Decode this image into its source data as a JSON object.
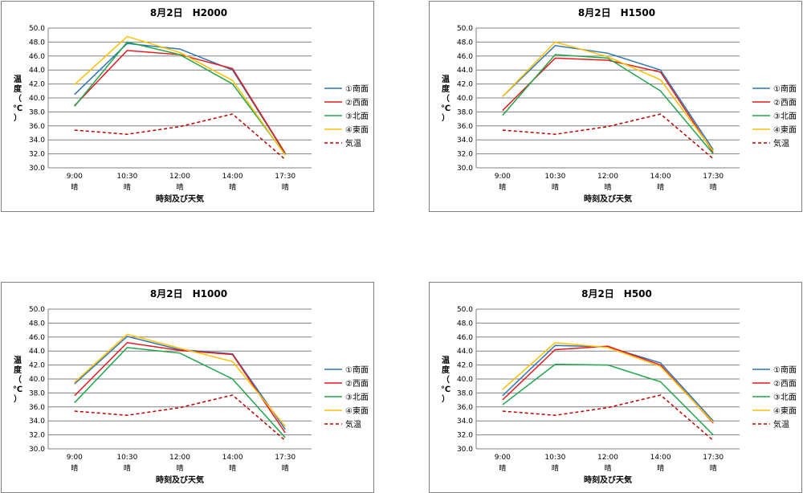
{
  "chart_data": [
    {
      "type": "line",
      "title": "8月2日　H2000",
      "xlabel": "時刻及び天気",
      "ylabel": "温度（℃）",
      "categories": [
        "9:00",
        "10:30",
        "12:00",
        "14:00",
        "17:30"
      ],
      "weather": [
        "晴",
        "晴",
        "晴",
        "晴",
        "晴"
      ],
      "ylim": [
        30.0,
        50.0
      ],
      "yticks": [
        "30.0",
        "32.0",
        "34.0",
        "36.0",
        "38.0",
        "40.0",
        "42.0",
        "44.0",
        "46.0",
        "48.0",
        "50.0"
      ],
      "grid": true,
      "legend_position": "right",
      "series": [
        {
          "name": "①南面",
          "color": "#2e75b6",
          "dash": false,
          "values": [
            40.5,
            47.8,
            47.0,
            44.0,
            32.0
          ]
        },
        {
          "name": "②西面",
          "color": "#e31a1c",
          "dash": false,
          "values": [
            38.9,
            46.8,
            46.2,
            44.2,
            32.1
          ]
        },
        {
          "name": "③北面",
          "color": "#1fa64a",
          "dash": false,
          "values": [
            38.8,
            48.0,
            46.2,
            42.0,
            31.9
          ]
        },
        {
          "name": "④東面",
          "color": "#ffc000",
          "dash": false,
          "values": [
            41.9,
            48.8,
            46.5,
            42.5,
            31.8
          ]
        },
        {
          "name": "気温",
          "color": "#c00000",
          "dash": true,
          "values": [
            35.4,
            34.8,
            35.9,
            37.7,
            31.2
          ]
        }
      ]
    },
    {
      "type": "line",
      "title": "8月2日　H1500",
      "xlabel": "時刻及び天気",
      "ylabel": "温度（℃）",
      "categories": [
        "9:00",
        "10:30",
        "12:00",
        "14:00",
        "17:30"
      ],
      "weather": [
        "晴",
        "晴",
        "晴",
        "晴",
        "晴"
      ],
      "ylim": [
        30.0,
        50.0
      ],
      "yticks": [
        "30.0",
        "32.0",
        "34.0",
        "36.0",
        "38.0",
        "40.0",
        "42.0",
        "44.0",
        "46.0",
        "48.0",
        "50.0"
      ],
      "grid": true,
      "legend_position": "right",
      "series": [
        {
          "name": "①南面",
          "color": "#2e75b6",
          "dash": false,
          "values": [
            40.2,
            47.5,
            46.4,
            44.0,
            32.6
          ]
        },
        {
          "name": "②西面",
          "color": "#e31a1c",
          "dash": false,
          "values": [
            38.2,
            45.7,
            45.4,
            43.7,
            32.2
          ]
        },
        {
          "name": "③北面",
          "color": "#1fa64a",
          "dash": false,
          "values": [
            37.5,
            46.2,
            45.7,
            41.0,
            32.0
          ]
        },
        {
          "name": "④東面",
          "color": "#ffc000",
          "dash": false,
          "values": [
            40.2,
            48.0,
            45.9,
            42.6,
            32.4
          ]
        },
        {
          "name": "気温",
          "color": "#c00000",
          "dash": true,
          "values": [
            35.4,
            34.8,
            35.9,
            37.7,
            31.3
          ]
        }
      ]
    },
    {
      "type": "line",
      "title": "8月2日　H1000",
      "xlabel": "時刻及び天気",
      "ylabel": "温度（℃）",
      "categories": [
        "9:00",
        "10:30",
        "12:00",
        "14:00",
        "17:30"
      ],
      "weather": [
        "晴",
        "晴",
        "晴",
        "晴",
        "晴"
      ],
      "ylim": [
        30.0,
        50.0
      ],
      "yticks": [
        "30.0",
        "32.0",
        "34.0",
        "36.0",
        "38.0",
        "40.0",
        "42.0",
        "44.0",
        "46.0",
        "48.0",
        "50.0"
      ],
      "grid": true,
      "legend_position": "right",
      "series": [
        {
          "name": "①南面",
          "color": "#2e75b6",
          "dash": false,
          "values": [
            39.3,
            46.1,
            44.2,
            43.6,
            32.8
          ]
        },
        {
          "name": "②西面",
          "color": "#e31a1c",
          "dash": false,
          "values": [
            37.6,
            45.2,
            44.1,
            43.5,
            32.3
          ]
        },
        {
          "name": "③北面",
          "color": "#1fa64a",
          "dash": false,
          "values": [
            36.6,
            44.5,
            43.7,
            40.0,
            31.6
          ]
        },
        {
          "name": "④東面",
          "color": "#ffc000",
          "dash": false,
          "values": [
            39.5,
            46.4,
            44.4,
            42.5,
            33.2
          ]
        },
        {
          "name": "気温",
          "color": "#c00000",
          "dash": true,
          "values": [
            35.4,
            34.8,
            35.9,
            37.7,
            31.2
          ]
        }
      ]
    },
    {
      "type": "line",
      "title": "8月2日　H500",
      "xlabel": "時刻及び天気",
      "ylabel": "温度（℃）",
      "categories": [
        "9:00",
        "10:30",
        "12:00",
        "14:00",
        "17:30"
      ],
      "weather": [
        "晴",
        "晴",
        "晴",
        "晴",
        "晴"
      ],
      "ylim": [
        30.0,
        50.0
      ],
      "yticks": [
        "30.0",
        "32.0",
        "34.0",
        "36.0",
        "38.0",
        "40.0",
        "42.0",
        "44.0",
        "46.0",
        "48.0",
        "50.0"
      ],
      "grid": true,
      "legend_position": "right",
      "series": [
        {
          "name": "①南面",
          "color": "#2e75b6",
          "dash": false,
          "values": [
            37.6,
            44.8,
            44.6,
            42.3,
            34.0
          ]
        },
        {
          "name": "②西面",
          "color": "#e31a1c",
          "dash": false,
          "values": [
            37.0,
            44.2,
            44.7,
            42.0,
            33.7
          ]
        },
        {
          "name": "③北面",
          "color": "#1fa64a",
          "dash": false,
          "values": [
            36.3,
            42.1,
            42.0,
            39.6,
            32.0
          ]
        },
        {
          "name": "④東面",
          "color": "#ffc000",
          "dash": false,
          "values": [
            38.5,
            45.2,
            44.5,
            41.8,
            33.8
          ]
        },
        {
          "name": "気温",
          "color": "#c00000",
          "dash": true,
          "values": [
            35.4,
            34.8,
            35.9,
            37.7,
            31.2
          ]
        }
      ]
    }
  ]
}
